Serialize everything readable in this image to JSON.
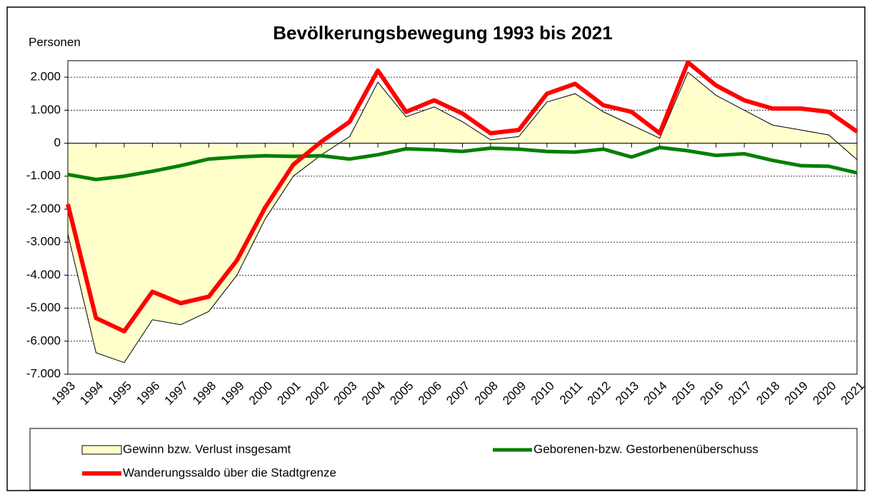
{
  "chart_data": {
    "type": "line",
    "title": "Bevölkerungsbewegung 1993 bis 2021",
    "y_label": "Personen",
    "categories": [
      "1993",
      "1994",
      "1995",
      "1996",
      "1997",
      "1998",
      "1999",
      "2000",
      "2001",
      "2002",
      "2003",
      "2004",
      "2005",
      "2006",
      "2007",
      "2008",
      "2009",
      "2010",
      "2011",
      "2012",
      "2013",
      "2014",
      "2015",
      "2016",
      "2017",
      "2018",
      "2019",
      "2020",
      "2021"
    ],
    "series": [
      {
        "name": "Gewinn bzw. Verlust insgesamt",
        "type": "area",
        "color": "#ffffcc",
        "values": [
          -2750,
          -6350,
          -6650,
          -5350,
          -5500,
          -5100,
          -4000,
          -2300,
          -1000,
          -350,
          200,
          1850,
          800,
          1100,
          650,
          100,
          200,
          1250,
          1500,
          950,
          550,
          150,
          2150,
          1450,
          1000,
          550,
          400,
          250,
          -500
        ]
      },
      {
        "name": "Geborenen-bzw. Gestorbenenüberschuss",
        "type": "line",
        "color": "#008000",
        "values": [
          -950,
          -1100,
          -1000,
          -850,
          -680,
          -480,
          -420,
          -380,
          -400,
          -380,
          -480,
          -350,
          -170,
          -200,
          -250,
          -150,
          -180,
          -250,
          -270,
          -180,
          -420,
          -130,
          -230,
          -370,
          -320,
          -520,
          -680,
          -700,
          -900
        ]
      },
      {
        "name": "Wanderungssaldo über die Stadtgrenze",
        "type": "line",
        "color": "#ff0000",
        "values": [
          -1850,
          -5300,
          -5700,
          -4500,
          -4850,
          -4650,
          -3550,
          -1950,
          -650,
          50,
          650,
          2200,
          950,
          1300,
          900,
          300,
          400,
          1500,
          1800,
          1150,
          950,
          300,
          2450,
          1750,
          1300,
          1050,
          1050,
          950,
          350
        ]
      }
    ],
    "ylim": [
      -7000,
      2500
    ],
    "yticks": [
      {
        "value": -7000,
        "label": "-7.000"
      },
      {
        "value": -6000,
        "label": "-6.000"
      },
      {
        "value": -5000,
        "label": "-5.000"
      },
      {
        "value": -4000,
        "label": "-4.000"
      },
      {
        "value": -3000,
        "label": "-3.000"
      },
      {
        "value": -2000,
        "label": "-2.000"
      },
      {
        "value": -1000,
        "label": "-1.000"
      },
      0,
      {
        "value": 1000,
        "label": "1.000"
      },
      {
        "value": 2000,
        "label": "2.000"
      }
    ],
    "grid": true
  }
}
